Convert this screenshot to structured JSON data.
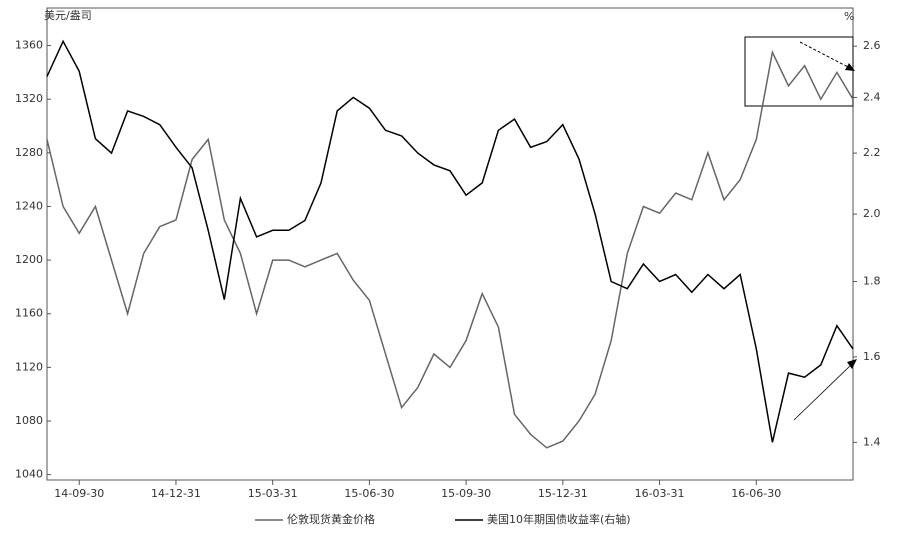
{
  "chart_data": {
    "type": "line",
    "y_axis_label": "美元/盎司",
    "y2_axis_label": "%",
    "categories": [
      null,
      null,
      "14-09-30",
      null,
      null,
      null,
      null,
      null,
      "14-12-31",
      null,
      null,
      null,
      null,
      null,
      "15-03-31",
      null,
      null,
      null,
      null,
      null,
      "15-06-30",
      null,
      null,
      null,
      null,
      null,
      "15-09-30",
      null,
      null,
      null,
      null,
      null,
      "15-12-31",
      null,
      null,
      null,
      null,
      null,
      "16-03-31",
      null,
      null,
      null,
      null,
      null,
      "16-06-30",
      null,
      null,
      null,
      null,
      null,
      null
    ],
    "series": [
      {
        "name": "伦敦现货黄金价格",
        "color": "#666666",
        "values": [
          1290,
          1240,
          1220,
          1240,
          1200,
          1160,
          1205,
          1225,
          1230,
          1275,
          1290,
          1230,
          1205,
          1160,
          1200,
          1200,
          1195,
          1200,
          1205,
          1185,
          1170,
          1130,
          1090,
          1105,
          1130,
          1120,
          1140,
          1175,
          1150,
          1085,
          1070,
          1060,
          1065,
          1080,
          1100,
          1140,
          1205,
          1240,
          1235,
          1250,
          1245,
          1280,
          1245,
          1260,
          1290,
          1355,
          1330,
          1345,
          1320,
          1340,
          1320
        ]
      },
      {
        "name": "美国10年期国债收益率(右轴)",
        "color": "#000000",
        "axis": "y2",
        "values": [
          2.48,
          2.62,
          2.5,
          2.25,
          2.2,
          2.35,
          2.33,
          2.3,
          2.22,
          2.15,
          1.95,
          1.75,
          2.05,
          1.93,
          1.95,
          1.95,
          1.98,
          2.1,
          2.35,
          2.4,
          2.36,
          2.28,
          2.26,
          2.2,
          2.16,
          2.14,
          2.06,
          2.1,
          2.28,
          2.32,
          2.22,
          2.24,
          2.3,
          2.18,
          2.0,
          1.8,
          1.78,
          1.85,
          1.8,
          1.82,
          1.77,
          1.82,
          1.78,
          1.82,
          1.62,
          1.4,
          1.56,
          1.55,
          1.58,
          1.68,
          1.62
        ]
      }
    ],
    "ylim": [
      1036,
      1388
    ],
    "yticks": [
      1040,
      1080,
      1120,
      1160,
      1200,
      1240,
      1280,
      1320,
      1360
    ],
    "y2lim": [
      1.32,
      2.76
    ],
    "y2_log": true,
    "y2ticks": [
      {
        "value": 1.4,
        "label": "1.4"
      },
      {
        "value": 1.6,
        "label": "1.6"
      },
      {
        "value": 1.8,
        "label": "1.8"
      },
      {
        "value": 2,
        "label": "2.0"
      },
      {
        "value": 2.2,
        "label": "2.2"
      },
      {
        "value": 2.4,
        "label": "2.4"
      },
      {
        "value": 2.6,
        "label": "2.6"
      }
    ],
    "grid": false,
    "legend": "bottom"
  }
}
